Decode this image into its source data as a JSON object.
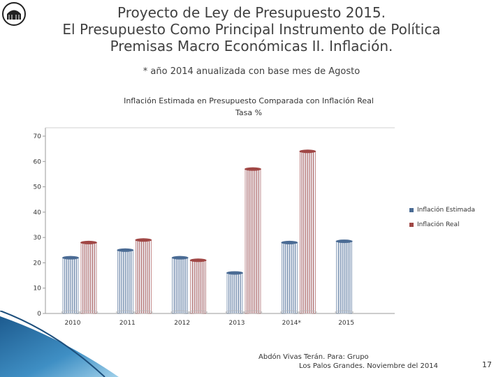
{
  "slide": {
    "title_lines": [
      "Proyecto de Ley de Presupuesto 2015.",
      "El Presupuesto Como Principal Instrumento de Política",
      "Premisas Macro Económicas II. Inflación."
    ],
    "note": "* año 2014 anualizada con base mes de Agosto",
    "footer_line1": "Abdón Vivas Terán. Para: Grupo",
    "footer_line2": "Los Palos Grandes.  Noviembre del 2014",
    "page_number": "17"
  },
  "chart_data": {
    "type": "bar",
    "title": "Inflación Estimada en Presupuesto Comparada con Inflación Real",
    "subtitle": "Tasa %",
    "categories": [
      "2010",
      "2011",
      "2012",
      "2013",
      "2014*",
      "2015"
    ],
    "series": [
      {
        "name": "Inflación Estimada",
        "color": "#4a6b94",
        "values": [
          22,
          25,
          22,
          16,
          28,
          28.5
        ]
      },
      {
        "name": "Inflación Real",
        "color": "#a04745",
        "values": [
          28,
          29,
          21,
          57,
          64,
          null
        ]
      }
    ],
    "y_ticks": [
      "0",
      "10",
      "20",
      "30",
      "40",
      "50",
      "60",
      "70"
    ],
    "ylim": [
      0,
      70
    ],
    "legend_position": "right"
  }
}
